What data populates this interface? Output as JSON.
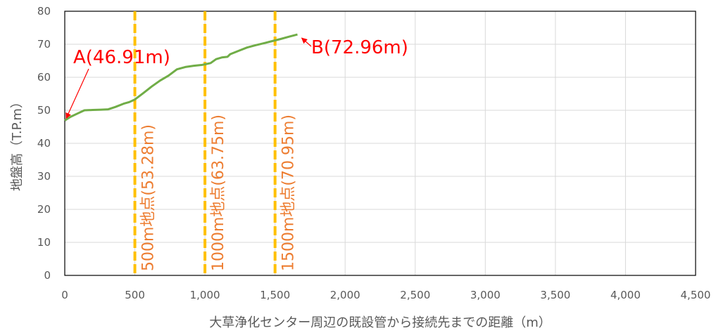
{
  "chart_data": {
    "type": "line",
    "title": "",
    "xlabel": "大草浄化センター周辺の既設管から接続先までの距離（m）",
    "ylabel": "地盤高（T.P.m）",
    "xlim": [
      0,
      4500
    ],
    "ylim": [
      0,
      80
    ],
    "xticks": [
      0,
      500,
      1000,
      1500,
      2000,
      2500,
      3000,
      3500,
      4000,
      4500
    ],
    "xtick_labels": [
      "0",
      "500",
      "1,000",
      "1,500",
      "2,000",
      "2,500",
      "3,000",
      "3,500",
      "4,000",
      "4,500"
    ],
    "yticks": [
      0,
      10,
      20,
      30,
      40,
      50,
      60,
      70,
      80
    ],
    "ytick_labels": [
      "0",
      "10",
      "20",
      "30",
      "40",
      "50",
      "60",
      "70",
      "80"
    ],
    "grid": true,
    "legend": "none",
    "series": [
      {
        "color": "#70AD47",
        "x": [
          0,
          40,
          90,
          140,
          200,
          260,
          310,
          360,
          420,
          460,
          500,
          560,
          620,
          680,
          740,
          800,
          860,
          920,
          980,
          1040,
          1080,
          1120,
          1160,
          1180,
          1240,
          1300,
          1360,
          1420,
          1480,
          1540,
          1600,
          1660
        ],
        "y": [
          46.91,
          48.0,
          49.0,
          50.0,
          50.1,
          50.2,
          50.3,
          51.0,
          52.0,
          52.5,
          53.28,
          55.2,
          57.2,
          59.0,
          60.5,
          62.4,
          63.1,
          63.5,
          63.75,
          64.3,
          65.5,
          66.0,
          66.2,
          67.0,
          68.0,
          69.0,
          69.7,
          70.3,
          70.95,
          71.6,
          72.3,
          72.96
        ]
      }
    ],
    "markers": [
      {
        "x": 500,
        "label": "500m地点(53.28m)"
      },
      {
        "x": 1000,
        "label": "1000m地点(63.75m)"
      },
      {
        "x": 1500,
        "label": "1500m地点(70.95m)"
      }
    ],
    "marker_color": "#FFC000",
    "annotations": [
      {
        "label": "A(46.91m)",
        "x": 0,
        "y": 46.91
      },
      {
        "label": "B(72.96m)",
        "x": 1660,
        "y": 72.96
      }
    ],
    "annotation_color": "#FF0000",
    "marker_label_color": "#ED7D31"
  }
}
